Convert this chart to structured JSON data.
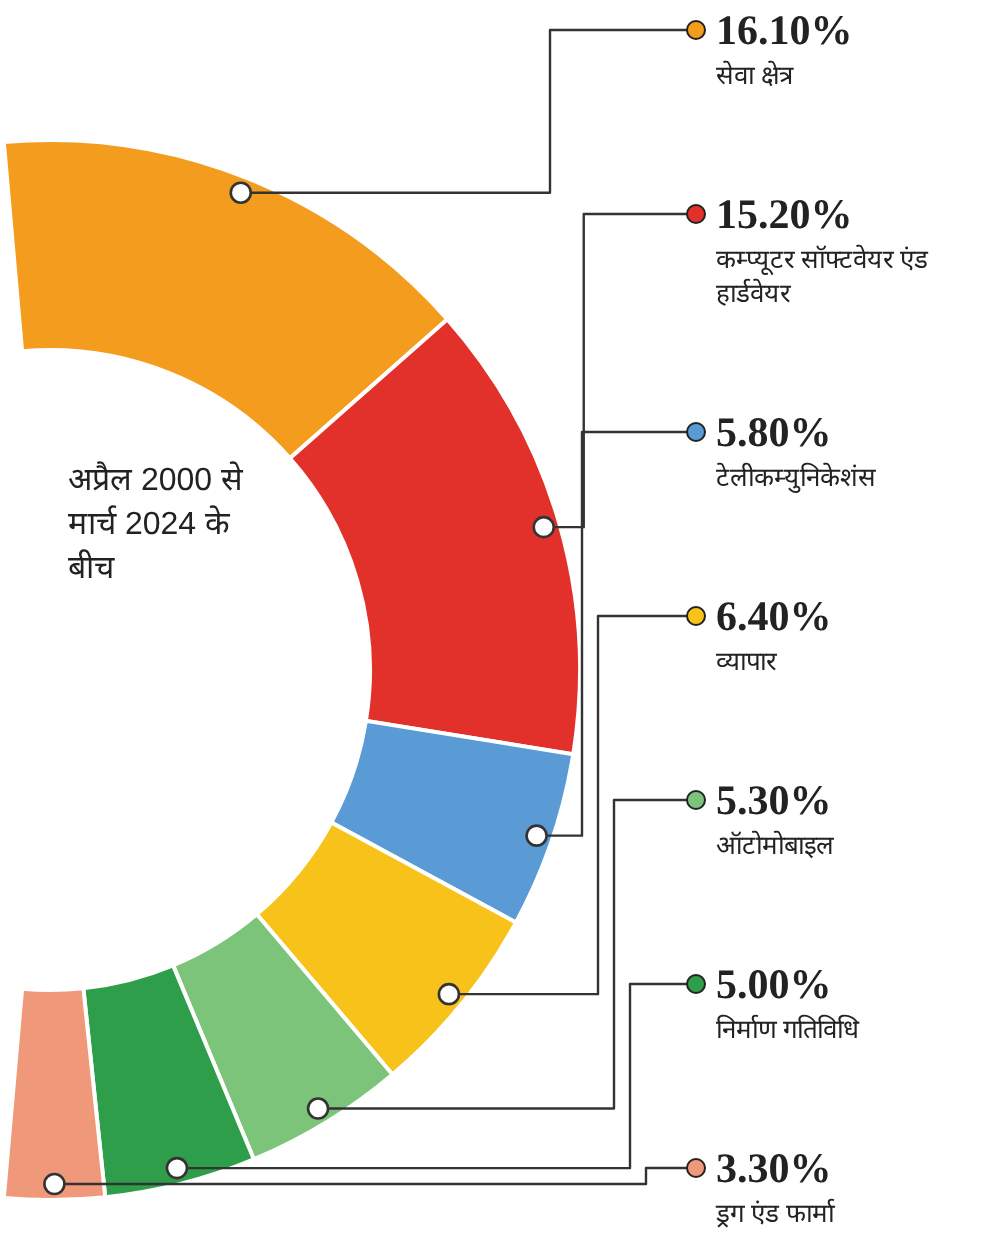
{
  "chart_data": {
    "type": "donut",
    "categories": [
      "सेवा क्षेत्र",
      "कम्प्यूटर सॉफ्टवेयर एंड हार्डवेयर",
      "टेलीकम्युनिकेशंस",
      "व्यापार",
      "ऑटोमोबाइल",
      "निर्माण गतिविधि",
      "ड्रग एंड फार्मा"
    ],
    "values": [
      16.1,
      15.2,
      5.8,
      6.4,
      5.3,
      5.0,
      3.3
    ],
    "value_labels": [
      "16.10%",
      "15.20%",
      "5.80%",
      "6.40%",
      "5.30%",
      "5.00%",
      "3.30%"
    ],
    "colors": [
      "#f39c1e",
      "#e2312b",
      "#5a9bd5",
      "#f7c21a",
      "#7cc47a",
      "#2e9e4a",
      "#f0987a"
    ],
    "legend": "right",
    "annotations": [
      "अप्रैल 2000 से मार्च 2024 के बीच"
    ]
  }
}
